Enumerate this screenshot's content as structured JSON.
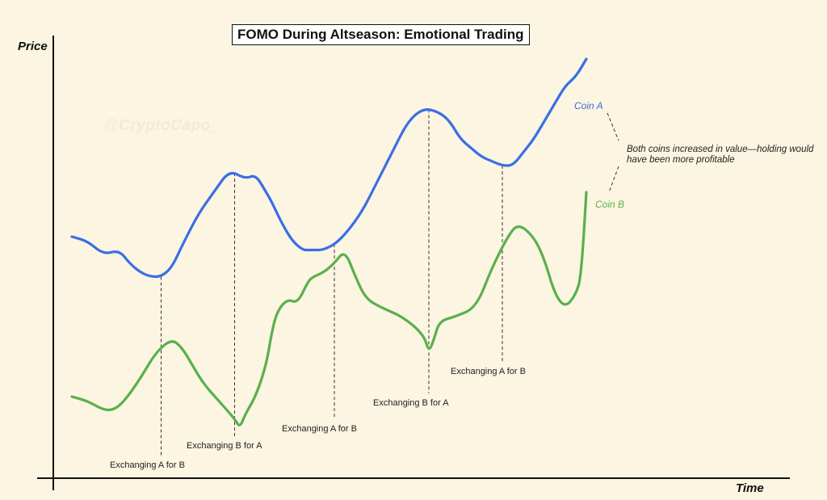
{
  "watermark": "@CryptoCapo_",
  "chart_data": {
    "type": "line",
    "title": "FOMO During Altseason: Emotional Trading",
    "xlabel": "Time",
    "ylabel": "Price",
    "xlim": [
      0,
      100
    ],
    "ylim": [
      0,
      100
    ],
    "grid": false,
    "legend": "inline labels at line ends",
    "series": [
      {
        "name": "Coin A",
        "color": "#3a6ee6",
        "x": [
          2,
          5,
          8,
          11,
          13,
          15,
          17,
          19,
          21,
          23,
          26,
          29,
          32,
          35,
          37,
          39,
          40,
          42,
          44,
          46,
          47,
          48,
          50,
          53,
          57,
          60,
          63,
          66,
          69,
          72,
          74,
          76,
          78,
          80,
          82,
          84,
          86,
          88,
          90,
          92,
          94,
          96,
          98,
          100
        ],
        "y": [
          54,
          53,
          50,
          51,
          48,
          46,
          45,
          45,
          47,
          52,
          59,
          64,
          69,
          67,
          68,
          64,
          62,
          57,
          53,
          51,
          51,
          51,
          51,
          53,
          59,
          66,
          73,
          80,
          83,
          82,
          80,
          76,
          74,
          72,
          71,
          70,
          70,
          73,
          76,
          80,
          84,
          88,
          90,
          94
        ]
      },
      {
        "name": "Coin B",
        "color": "#5ab04c",
        "x": [
          2,
          5,
          8,
          10,
          12,
          15,
          18,
          21,
          23,
          25,
          27,
          30,
          33,
          34,
          35,
          37,
          39,
          40,
          41,
          43,
          45,
          47,
          48,
          50,
          52,
          54,
          56,
          58,
          61,
          65,
          69,
          70,
          71,
          72,
          75,
          79,
          82,
          85,
          87,
          90,
          92,
          94,
          96,
          98,
          99,
          100
        ],
        "y": [
          18,
          17,
          15,
          15,
          17,
          22,
          28,
          31,
          29,
          25,
          21,
          17,
          13,
          11,
          14,
          18,
          25,
          32,
          37,
          40,
          39,
          44,
          45,
          46,
          48,
          51,
          45,
          40,
          38,
          36,
          32,
          28,
          31,
          35,
          36,
          38,
          47,
          54,
          57,
          54,
          49,
          41,
          38,
          41,
          45,
          64
        ]
      }
    ],
    "annotations": [
      {
        "text": "Exchanging A for B",
        "x": 19
      },
      {
        "text": "Exchanging B for A",
        "x": 33
      },
      {
        "text": "Exchanging A for B",
        "x": 52
      },
      {
        "text": "Exchanging B for A",
        "x": 70
      },
      {
        "text": "Exchanging A for B",
        "x": 84
      }
    ],
    "note": "Both coins increased in value—holding would have been more profitable"
  }
}
